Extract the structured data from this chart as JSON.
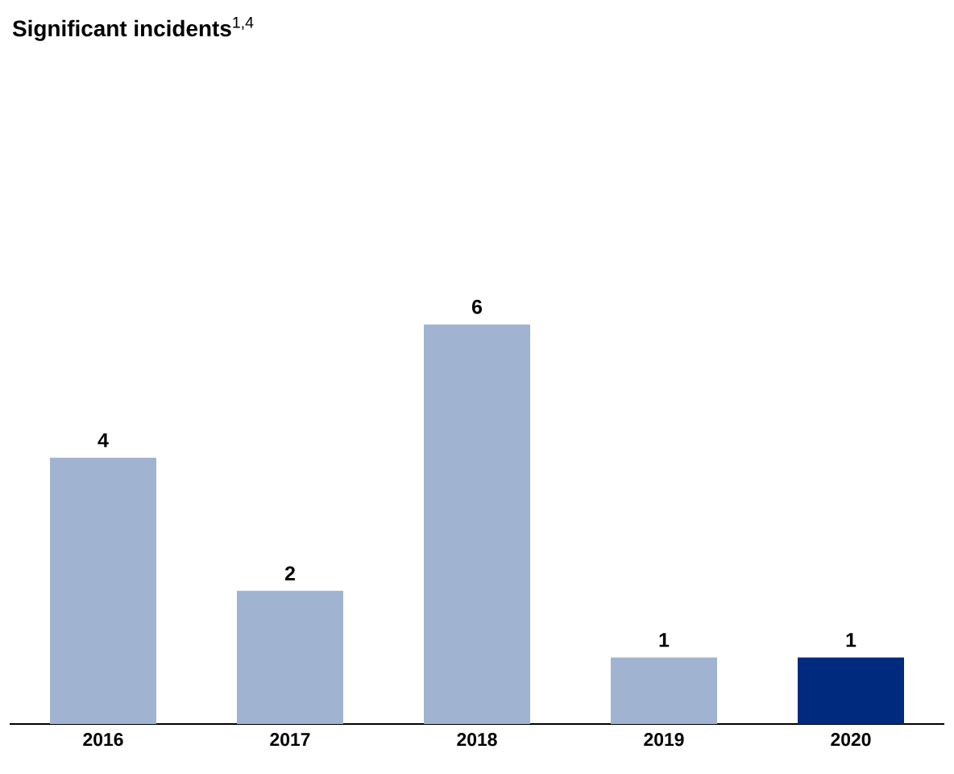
{
  "chart_data": {
    "type": "bar",
    "title": "**Significant incidents**$^{1,4}$",
    "categories": [
      "2016",
      "2017",
      "2018",
      "2019",
      "2020"
    ],
    "values": [
      4,
      2,
      6,
      1,
      1
    ],
    "colors": [
      "#a0b3d0",
      "#a0b3d0",
      "#a0b3d0",
      "#a0b3d0",
      "#002a7e"
    ],
    "data_labels": true
  }
}
